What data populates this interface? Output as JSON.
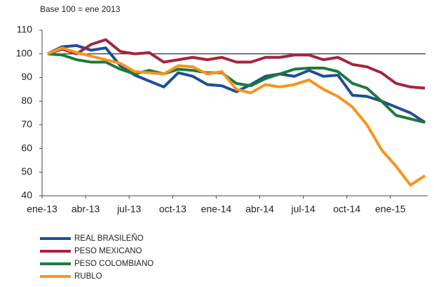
{
  "chart_data": {
    "type": "line",
    "subtitle": "Base 100 = ene 2013",
    "categories": [
      "ene-13",
      null,
      null,
      "abr-13",
      null,
      null,
      "jul-13",
      null,
      null,
      "oct-13",
      null,
      null,
      "ene-14",
      null,
      null,
      "abr-14",
      null,
      null,
      "jul-14",
      null,
      null,
      "oct-14",
      null,
      null,
      "ene-15",
      null,
      null
    ],
    "series": [
      {
        "name": "REAL BRASILEÑO",
        "color": "#1f4e96",
        "values": [
          100,
          103,
          103.5,
          101.5,
          102.5,
          95,
          91,
          88.5,
          86,
          92,
          90.5,
          87,
          86.5,
          84,
          87,
          90.5,
          91.5,
          90.5,
          93,
          90.5,
          91,
          82.5,
          82,
          80,
          77.5,
          75,
          71
        ]
      },
      {
        "name": "PESO MEXICANO",
        "color": "#a3263c",
        "values": [
          100,
          102,
          100,
          104,
          106,
          101,
          100,
          100.5,
          96.5,
          97.5,
          98.5,
          97.5,
          98.5,
          96.5,
          96.5,
          98.5,
          98.5,
          99.5,
          99.5,
          97.5,
          98.5,
          95.5,
          94.5,
          92,
          87.5,
          86,
          85.5
        ]
      },
      {
        "name": "PESO COLOMBIANO",
        "color": "#1e7a3a",
        "values": [
          100,
          99.5,
          97.5,
          96.5,
          96.5,
          93.5,
          91.5,
          93,
          91.5,
          93.5,
          93,
          92,
          92,
          87.5,
          86.5,
          89.5,
          91.5,
          93.5,
          94,
          94,
          92.5,
          87.5,
          85.5,
          80,
          74,
          72.5,
          71
        ]
      },
      {
        "name": "RUBLO",
        "color": "#f7941d",
        "values": [
          100,
          102.5,
          100.5,
          99,
          97.5,
          96,
          92.5,
          92,
          91.5,
          95,
          94.5,
          91.5,
          92.5,
          85,
          83.5,
          87,
          86,
          87,
          89,
          85,
          82,
          77.5,
          70,
          59.5,
          52.5,
          44.5,
          48.5
        ]
      }
    ],
    "reference_line": 100,
    "ylim": [
      40,
      110
    ],
    "yticks": [
      40,
      50,
      60,
      70,
      80,
      90,
      100,
      110
    ]
  }
}
